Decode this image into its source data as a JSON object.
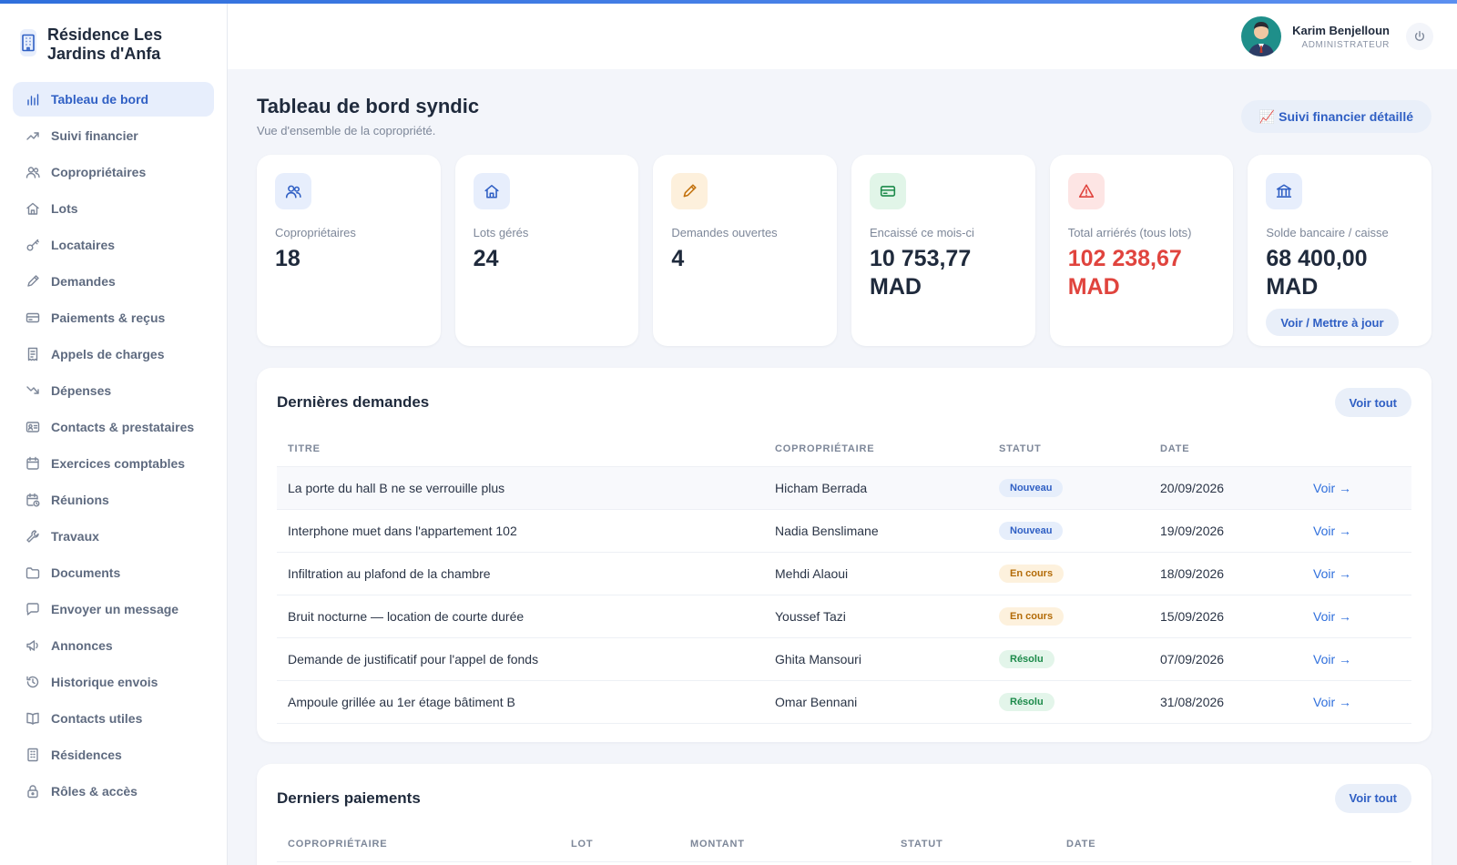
{
  "brand": {
    "name": "Résidence Les Jardins d'Anfa"
  },
  "sidebar": {
    "items": [
      {
        "label": "Tableau de bord",
        "icon": "bar-chart-icon",
        "active": true
      },
      {
        "label": "Suivi financier",
        "icon": "trending-up-icon"
      },
      {
        "label": "Copropriétaires",
        "icon": "users-icon"
      },
      {
        "label": "Lots",
        "icon": "home-icon"
      },
      {
        "label": "Locataires",
        "icon": "key-icon"
      },
      {
        "label": "Demandes",
        "icon": "pencil-icon"
      },
      {
        "label": "Paiements & reçus",
        "icon": "credit-card-icon"
      },
      {
        "label": "Appels de charges",
        "icon": "receipt-icon"
      },
      {
        "label": "Dépenses",
        "icon": "trending-down-icon"
      },
      {
        "label": "Contacts & prestataires",
        "icon": "id-card-icon"
      },
      {
        "label": "Exercices comptables",
        "icon": "calendar-icon"
      },
      {
        "label": "Réunions",
        "icon": "calendar-clock-icon"
      },
      {
        "label": "Travaux",
        "icon": "wrench-icon"
      },
      {
        "label": "Documents",
        "icon": "folder-icon"
      },
      {
        "label": "Envoyer un message",
        "icon": "message-icon"
      },
      {
        "label": "Annonces",
        "icon": "megaphone-icon"
      },
      {
        "label": "Historique envois",
        "icon": "history-icon"
      },
      {
        "label": "Contacts utiles",
        "icon": "book-icon"
      },
      {
        "label": "Résidences",
        "icon": "building-icon"
      },
      {
        "label": "Rôles & accès",
        "icon": "lock-icon"
      }
    ]
  },
  "header": {
    "user_name": "Karim Benjelloun",
    "user_role": "ADMINISTRATEUR"
  },
  "page": {
    "title": "Tableau de bord syndic",
    "subtitle": "Vue d'ensemble de la copropriété.",
    "fin_button": "📈 Suivi financier détaillé"
  },
  "stats": [
    {
      "label": "Copropriétaires",
      "value": "18",
      "icon": "users-icon",
      "color": "#2f5fc4",
      "bg": "#e7eefc"
    },
    {
      "label": "Lots gérés",
      "value": "24",
      "icon": "home-icon",
      "color": "#2f5fc4",
      "bg": "#e7eefc"
    },
    {
      "label": "Demandes ouvertes",
      "value": "4",
      "icon": "pencil-icon",
      "color": "#c2710c",
      "bg": "#fdf0dc"
    },
    {
      "label": "Encaissé ce mois-ci",
      "value": "10 753,77 MAD",
      "icon": "credit-card-icon",
      "color": "#1c8a4a",
      "bg": "#e1f5e8"
    },
    {
      "label": "Total arriérés (tous lots)",
      "value": "102 238,67 MAD",
      "icon": "alert-icon",
      "color": "#e0443e",
      "bg": "#fde5e4"
    },
    {
      "label": "Solde bancaire / caisse",
      "value": "68 400,00 MAD",
      "icon": "bank-icon",
      "color": "#2f5fc4",
      "bg": "#e7eefc",
      "button": "Voir / Mettre à jour"
    }
  ],
  "requests": {
    "title": "Dernières demandes",
    "see_all": "Voir tout",
    "columns": [
      "TITRE",
      "COPROPRIÉTAIRE",
      "STATUT",
      "DATE"
    ],
    "action_label": "Voir →",
    "rows": [
      {
        "title": "La porte du hall B ne se verrouille plus",
        "owner": "Hicham Berrada",
        "status": "Nouveau",
        "kind": "new",
        "date": "20/09/2026"
      },
      {
        "title": "Interphone muet dans l'appartement 102",
        "owner": "Nadia Benslimane",
        "status": "Nouveau",
        "kind": "new",
        "date": "19/09/2026"
      },
      {
        "title": "Infiltration au plafond de la chambre",
        "owner": "Mehdi Alaoui",
        "status": "En cours",
        "kind": "prog",
        "date": "18/09/2026"
      },
      {
        "title": "Bruit nocturne — location de courte durée",
        "owner": "Youssef Tazi",
        "status": "En cours",
        "kind": "prog",
        "date": "15/09/2026"
      },
      {
        "title": "Demande de justificatif pour l'appel de fonds",
        "owner": "Ghita Mansouri",
        "status": "Résolu",
        "kind": "done",
        "date": "07/09/2026"
      },
      {
        "title": "Ampoule grillée au 1er étage bâtiment B",
        "owner": "Omar Bennani",
        "status": "Résolu",
        "kind": "done",
        "date": "31/08/2026"
      }
    ]
  },
  "payments": {
    "title": "Derniers paiements",
    "see_all": "Voir tout",
    "columns": [
      "COPROPRIÉTAIRE",
      "LOT",
      "MONTANT",
      "STATUT",
      "DATE"
    ]
  }
}
